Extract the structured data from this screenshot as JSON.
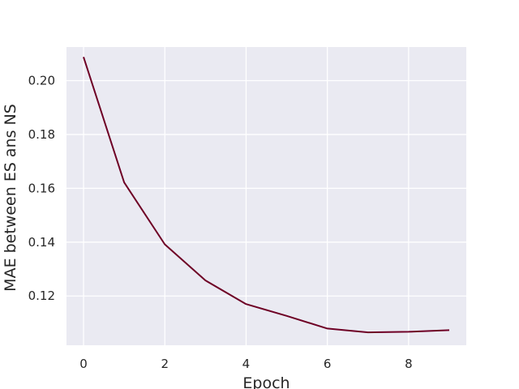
{
  "chart_data": {
    "type": "line",
    "xlabel": "Epoch",
    "ylabel": "MAE between ES ans NS",
    "x": [
      0,
      1,
      2,
      3,
      4,
      5,
      6,
      7,
      8,
      9
    ],
    "series": [
      {
        "values": [
          0.2088,
          0.1622,
          0.1392,
          0.1258,
          0.117,
          0.1126,
          0.1079,
          0.1065,
          0.1067,
          0.1073
        ],
        "color": "#6e0025"
      }
    ],
    "xlim": [
      -0.42,
      9.42
    ],
    "ylim": [
      0.1017,
      0.2125
    ],
    "xticks": [
      0,
      2,
      4,
      6,
      8
    ],
    "yticks": [
      0.12,
      0.14,
      0.16,
      0.18,
      0.2
    ],
    "ytick_labels": [
      "0.12",
      "0.14",
      "0.16",
      "0.18",
      "0.20"
    ],
    "grid": true,
    "background": "#eaeaf2",
    "grid_color": "#ffffff"
  }
}
